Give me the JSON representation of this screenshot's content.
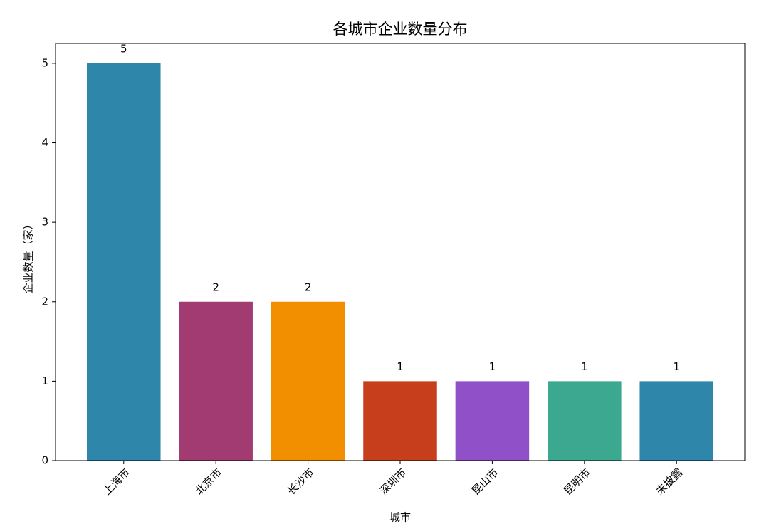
{
  "chart_data": {
    "type": "bar",
    "title": "各城市企业数量分布",
    "x_label": "城市",
    "y_label": "企业数量（家）",
    "categories": [
      "上海市",
      "北京市",
      "长沙市",
      "深圳市",
      "昆山市",
      "昆明市",
      "未披露"
    ],
    "values": [
      5,
      2,
      2,
      1,
      1,
      1,
      1
    ],
    "colors": [
      "#2e86ab",
      "#a23b72",
      "#f18f01",
      "#c73e1d",
      "#9050c8",
      "#3ba88f",
      "#2e86ab"
    ],
    "ylim": [
      0,
      5.25
    ],
    "yticks": [
      0,
      1,
      2,
      3,
      4,
      5
    ]
  }
}
